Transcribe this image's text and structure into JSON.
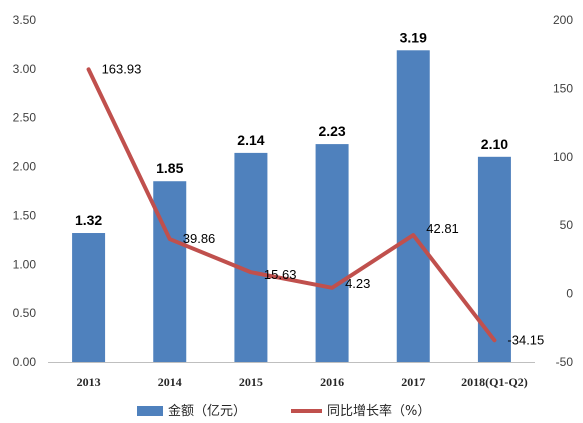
{
  "chart_data": {
    "type": "bar+line",
    "categories": [
      "2013",
      "2014",
      "2015",
      "2016",
      "2017",
      "2018(Q1-Q2)"
    ],
    "series": [
      {
        "name": "金额（亿元）",
        "type": "bar",
        "axis": "left",
        "color": "#4F81BD",
        "values": [
          1.32,
          1.85,
          2.14,
          2.23,
          3.19,
          2.1
        ],
        "labels": [
          "1.32",
          "1.85",
          "2.14",
          "2.23",
          "3.19",
          "2.10"
        ]
      },
      {
        "name": "同比增长率（%）",
        "type": "line",
        "axis": "right",
        "color": "#C0504D",
        "values": [
          163.93,
          39.86,
          15.63,
          4.23,
          42.81,
          -34.15
        ],
        "labels": [
          "163.93",
          "39.86",
          "15.63",
          "4.23",
          "42.81",
          "-34.15"
        ]
      }
    ],
    "y_left": {
      "range": [
        0,
        3.5
      ],
      "ticks": [
        0,
        0.5,
        1.0,
        1.5,
        2.0,
        2.5,
        3.0,
        3.5
      ],
      "tick_labels": [
        "0.00",
        "0.50",
        "1.00",
        "1.50",
        "2.00",
        "2.50",
        "3.00",
        "3.50"
      ]
    },
    "y_right": {
      "range": [
        -50,
        200
      ],
      "ticks": [
        -50,
        0,
        50,
        100,
        150,
        200
      ],
      "tick_labels": [
        "-50",
        "0",
        "50",
        "100",
        "150",
        "200"
      ]
    },
    "grid": false,
    "legend_position": "bottom"
  }
}
